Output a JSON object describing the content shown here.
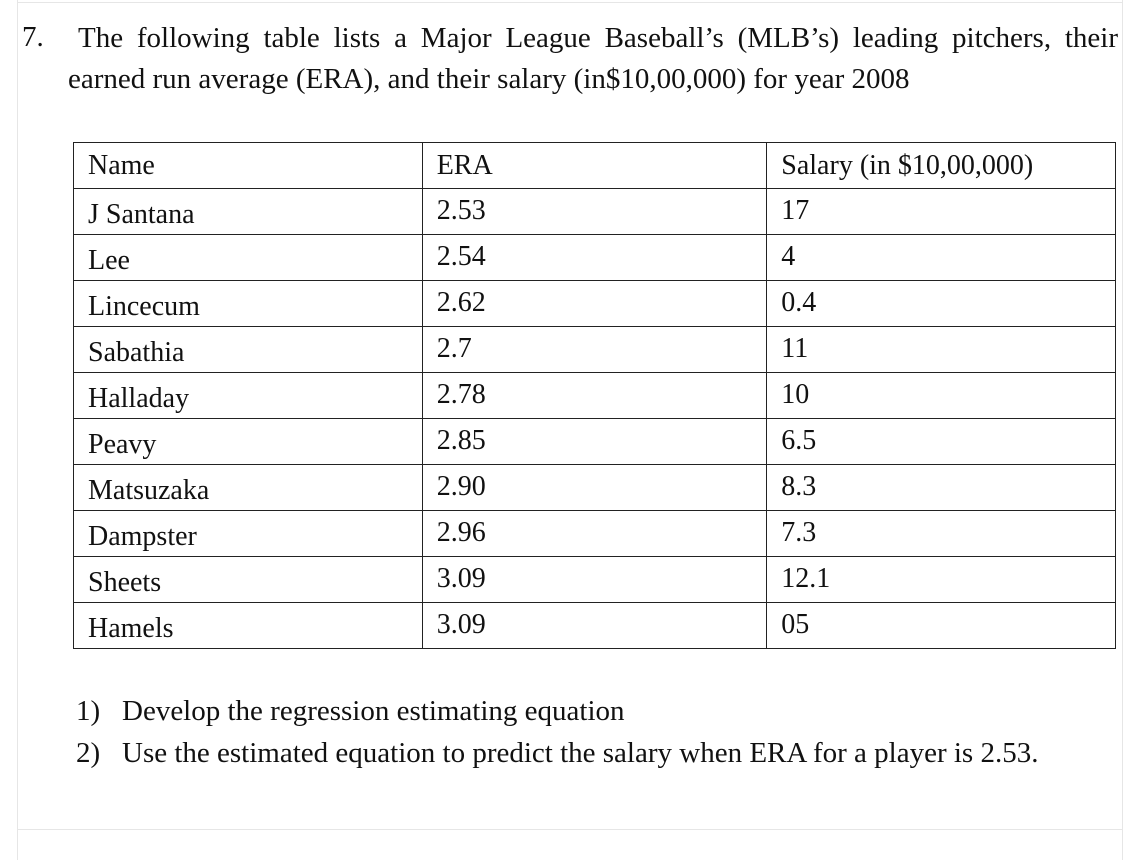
{
  "question": {
    "number": "7.",
    "text": "The following table lists a Major League Baseball’s (MLB’s) leading pitchers, their earned run average (ERA), and their salary (in$10,00,000) for year 2008"
  },
  "table": {
    "headers": [
      "Name",
      "ERA",
      "Salary (in $10,00,000)"
    ],
    "rows": [
      {
        "name": "J Santana",
        "era": "2.53",
        "salary": "17"
      },
      {
        "name": "Lee",
        "era": "2.54",
        "salary": "4"
      },
      {
        "name": "Lincecum",
        "era": "2.62",
        "salary": "0.4"
      },
      {
        "name": "Sabathia",
        "era": "2.7",
        "salary": "11"
      },
      {
        "name": "Halladay",
        "era": "2.78",
        "salary": "10"
      },
      {
        "name": "Peavy",
        "era": "2.85",
        "salary": "6.5"
      },
      {
        "name": "Matsuzaka",
        "era": "2.90",
        "salary": "8.3"
      },
      {
        "name": "Dampster",
        "era": "2.96",
        "salary": "7.3"
      },
      {
        "name": "Sheets",
        "era": "3.09",
        "salary": "12.1"
      },
      {
        "name": "Hamels",
        "era": "3.09",
        "salary": "05"
      }
    ]
  },
  "parts": [
    {
      "num": "1)",
      "text": "Develop the regression estimating equation"
    },
    {
      "num": "2)",
      "text": "Use the estimated equation to predict the salary when ERA for a player is 2.53."
    }
  ]
}
